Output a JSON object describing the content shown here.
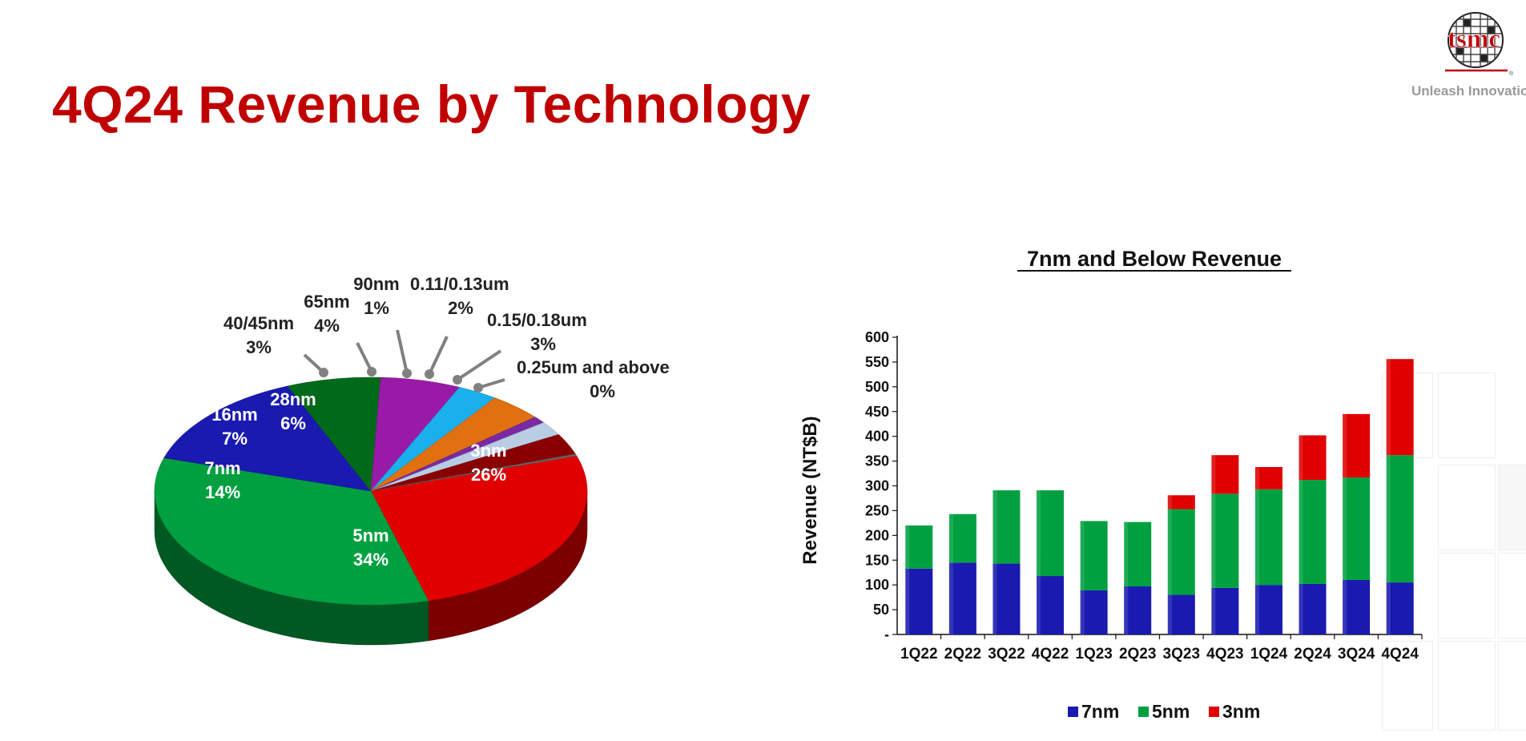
{
  "slide": {
    "title": "4Q24 Revenue by Technology",
    "brand_name": "tsmc",
    "tagline": "Unleash Innovatio"
  },
  "colors": {
    "title": "#c00000",
    "n3": "#e00000",
    "n5": "#00a040",
    "n7": "#1a1ab0",
    "n16": "#006a1a",
    "n28": "#9a1aa8",
    "n40": "#1ab0ee",
    "n65": "#e07010",
    "n90": "#7a2aa0",
    "n011": "#b8cce4",
    "n015": "#8a0000"
  },
  "chart_data": [
    {
      "type": "pie",
      "title": "",
      "slices": [
        {
          "label": "3nm",
          "percent": "26%",
          "value": 26,
          "color": "#e00000"
        },
        {
          "label": "5nm",
          "percent": "34%",
          "value": 34,
          "color": "#00a040"
        },
        {
          "label": "7nm",
          "percent": "14%",
          "value": 14,
          "color": "#1a1ab0"
        },
        {
          "label": "16nm",
          "percent": "7%",
          "value": 7,
          "color": "#006a1a"
        },
        {
          "label": "28nm",
          "percent": "6%",
          "value": 6,
          "color": "#9a1aa8"
        },
        {
          "label": "40/45nm",
          "percent": "3%",
          "value": 3,
          "color": "#1ab0ee"
        },
        {
          "label": "65nm",
          "percent": "4%",
          "value": 4,
          "color": "#e07010"
        },
        {
          "label": "90nm",
          "percent": "1%",
          "value": 1,
          "color": "#7a2aa0"
        },
        {
          "label": "0.11/0.13um",
          "percent": "2%",
          "value": 2,
          "color": "#b8cce4"
        },
        {
          "label": "0.15/0.18um",
          "percent": "3%",
          "value": 3,
          "color": "#8a0000"
        },
        {
          "label": "0.25um and above",
          "percent": "0%",
          "value": 0,
          "color": "#666666"
        }
      ]
    },
    {
      "type": "bar",
      "stacked": true,
      "title": "7nm and Below Revenue",
      "ylabel": "Revenue (NT$B)",
      "xlabel": "",
      "ylim": [
        0,
        600
      ],
      "yticks": [
        "-",
        "50",
        "100",
        "150",
        "200",
        "250",
        "300",
        "350",
        "400",
        "450",
        "500",
        "550",
        "600"
      ],
      "categories": [
        "1Q22",
        "2Q22",
        "3Q22",
        "4Q22",
        "1Q23",
        "2Q23",
        "3Q23",
        "4Q23",
        "1Q24",
        "2Q24",
        "3Q24",
        "4Q24"
      ],
      "series": [
        {
          "name": "7nm",
          "color": "#1a1ab0",
          "values": [
            133,
            145,
            143,
            118,
            89,
            97,
            80,
            94,
            100,
            102,
            110,
            105
          ]
        },
        {
          "name": "5nm",
          "color": "#00a040",
          "values": [
            87,
            98,
            148,
            173,
            140,
            130,
            173,
            190,
            193,
            210,
            207,
            257
          ]
        },
        {
          "name": "3nm",
          "color": "#e00000",
          "values": [
            0,
            0,
            0,
            0,
            0,
            0,
            28,
            78,
            45,
            90,
            128,
            194
          ]
        }
      ],
      "legend": "bottom"
    }
  ]
}
